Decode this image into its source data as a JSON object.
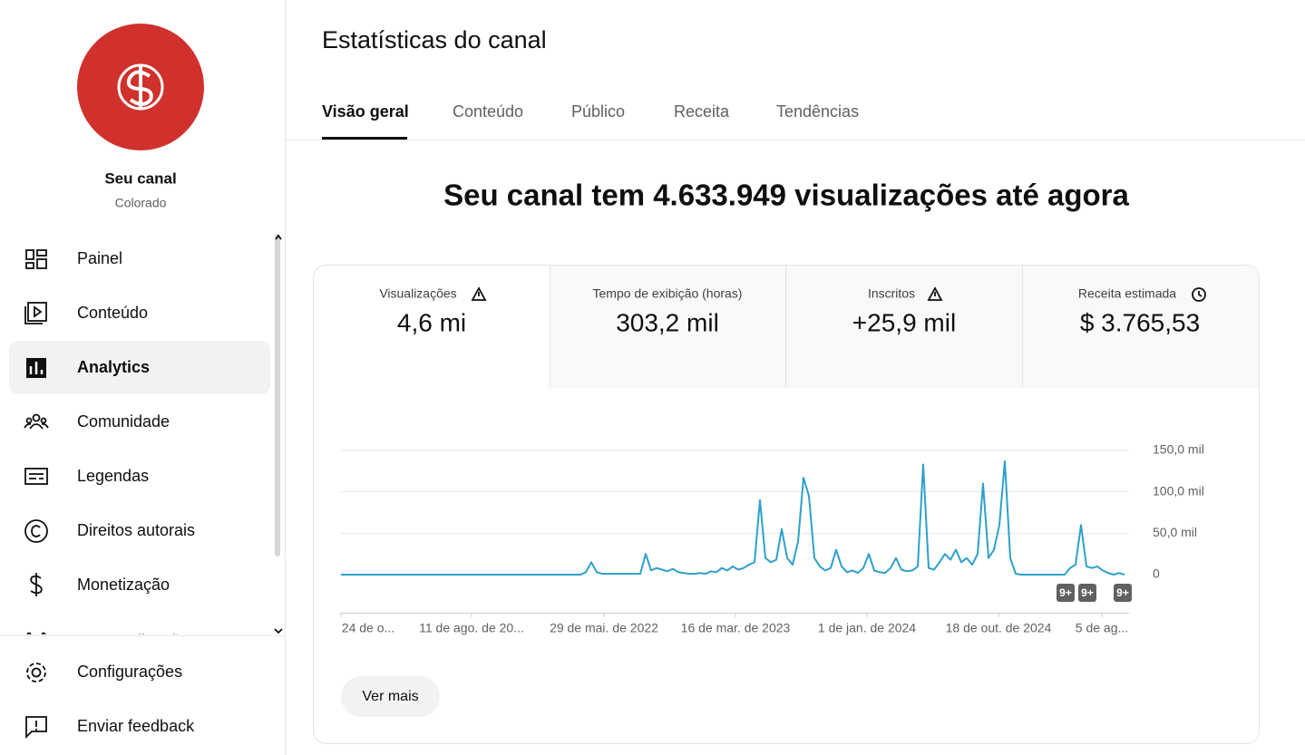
{
  "sidebar": {
    "channel_title": "Seu canal",
    "channel_name": "Colorado",
    "nav": [
      "Painel",
      "Conteúdo",
      "Analytics",
      "Comunidade",
      "Legendas",
      "Direitos autorais",
      "Monetização",
      "Personalização"
    ],
    "footer": [
      "Configurações",
      "Enviar feedback"
    ]
  },
  "header": {
    "title": "Estatísticas do canal",
    "tabs": [
      "Visão geral",
      "Conteúdo",
      "Público",
      "Receita",
      "Tendências"
    ]
  },
  "headline": "Seu canal tem 4.633.949 visualizações até agora",
  "metrics": [
    {
      "label": "Visualizações",
      "value": "4,6 mi"
    },
    {
      "label": "Tempo de exibição (horas)",
      "value": "303,2 mil"
    },
    {
      "label": "Inscritos",
      "value": "+25,9 mil"
    },
    {
      "label": "Receita estimada",
      "value": "$ 3.765,53"
    }
  ],
  "chart_data": {
    "type": "line",
    "color": "#2ea0c9",
    "x_labels": [
      "24 de o...",
      "11 de ago. de 20...",
      "29 de mai. de 2022",
      "16 de mar. de 2023",
      "1 de jan. de 2024",
      "18 de out. de 2024",
      "5 de ag..."
    ],
    "values": [
      0,
      0,
      0,
      0,
      0,
      0,
      0,
      0,
      0,
      0,
      0,
      0,
      0,
      0,
      0,
      0,
      0,
      0,
      0,
      0,
      0,
      0,
      0,
      0,
      0,
      0,
      0,
      0,
      0,
      0,
      0,
      0,
      0,
      0,
      0,
      0,
      0,
      0,
      0,
      0,
      0,
      0,
      0,
      0,
      0,
      3,
      15,
      3,
      1,
      1,
      1,
      1,
      1,
      1,
      1,
      1,
      25,
      5,
      8,
      6,
      4,
      7,
      3,
      2,
      1,
      1,
      2,
      1,
      4,
      3,
      8,
      5,
      10,
      6,
      8,
      12,
      15,
      90,
      20,
      15,
      18,
      55,
      20,
      12,
      40,
      117,
      95,
      20,
      10,
      5,
      8,
      30,
      10,
      3,
      5,
      2,
      8,
      25,
      5,
      3,
      2,
      8,
      20,
      6,
      4,
      5,
      10,
      133,
      8,
      6,
      15,
      25,
      18,
      30,
      15,
      20,
      12,
      25,
      110,
      20,
      30,
      60,
      137,
      20,
      1,
      0,
      0,
      0,
      0,
      0,
      0,
      0,
      0,
      0,
      8,
      12,
      60,
      10,
      8,
      10,
      5,
      2,
      0,
      2,
      0
    ],
    "ylim": [
      0,
      150
    ],
    "yticks": [
      0,
      {
        "value": 50,
        "label": "50,0 mil"
      },
      {
        "value": 100,
        "label": "100,0 mil"
      },
      {
        "value": 150,
        "label": "150,0 mil"
      }
    ],
    "grid": true,
    "annotations": [
      "9+",
      "9+",
      "9+"
    ]
  },
  "button": "Ver mais"
}
